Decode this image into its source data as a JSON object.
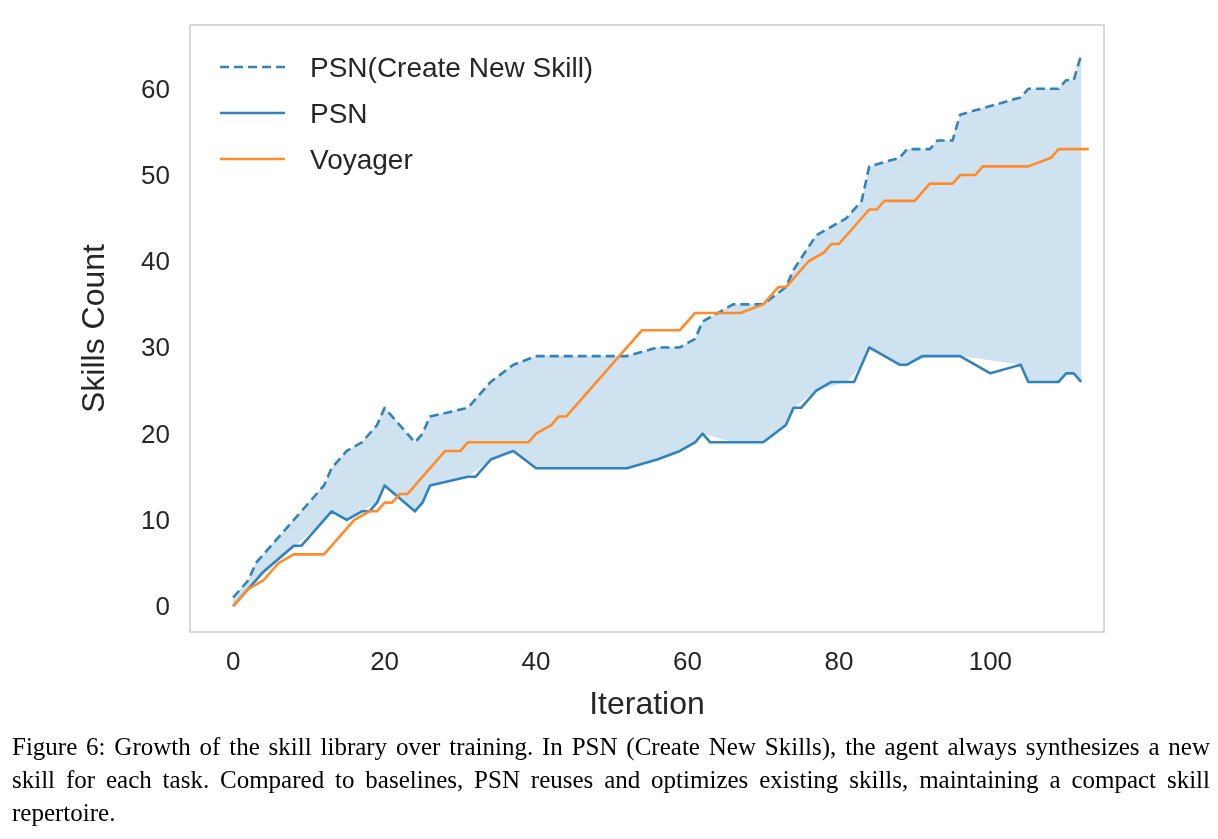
{
  "chart_data": {
    "type": "line",
    "xlabel": "Iteration",
    "ylabel": "Skills Count",
    "xlim": [
      -5.7,
      115
    ],
    "ylim": [
      -3,
      67.4
    ],
    "xticks": [
      0,
      20,
      40,
      60,
      80,
      100
    ],
    "yticks": [
      0,
      10,
      20,
      30,
      40,
      50,
      60
    ],
    "grid": false,
    "legend": "top left",
    "marker": "none",
    "series": [
      {
        "name": "PSN(Create New Skill)",
        "color": "#3182bd",
        "line_style": "dashed",
        "x": [
          0,
          2,
          3,
          7,
          12,
          13,
          15,
          17,
          19,
          20,
          24,
          25,
          26,
          31,
          34,
          37,
          40,
          52,
          56,
          59,
          61,
          62,
          66,
          70,
          73,
          74,
          77,
          81,
          83,
          84,
          88,
          89,
          92,
          93,
          95,
          96,
          104,
          105,
          109,
          110,
          111,
          112
        ],
        "values": [
          1,
          3,
          5,
          9,
          14,
          16,
          18,
          19,
          21,
          23,
          19,
          20,
          22,
          23,
          26,
          28,
          29,
          29,
          30,
          30,
          31,
          33,
          35,
          35,
          37,
          39,
          43,
          45,
          47,
          51,
          52,
          53,
          53,
          54,
          54,
          57,
          59,
          60,
          60,
          61,
          61,
          64
        ],
        "upper": [
          1,
          3,
          5,
          9,
          14,
          16,
          18,
          19,
          21,
          23,
          19,
          20,
          22,
          23,
          26,
          28,
          29,
          29,
          30,
          30,
          31,
          33,
          35,
          35,
          37,
          39,
          43,
          45,
          47,
          51,
          52,
          53,
          53,
          54,
          54,
          57,
          59,
          60,
          60,
          61,
          61,
          64
        ],
        "lower": [
          0,
          2,
          3,
          6,
          10,
          11,
          10,
          11,
          12,
          14,
          11,
          12,
          14,
          15,
          17,
          18,
          16,
          16,
          17,
          18,
          19,
          20,
          19,
          19,
          21,
          23,
          25,
          26,
          28,
          30,
          28,
          28,
          29,
          29,
          29,
          29,
          28,
          26,
          26,
          27,
          27,
          26
        ]
      },
      {
        "name": "PSN",
        "color": "#3182bd",
        "line_style": "solid",
        "x": [
          0,
          2,
          4,
          8,
          9,
          13,
          15,
          17,
          18,
          19,
          20,
          24,
          25,
          26,
          31,
          32,
          34,
          37,
          40,
          52,
          56,
          59,
          61,
          62,
          63,
          70,
          73,
          74,
          75,
          77,
          79,
          82,
          84,
          88,
          89,
          91,
          96,
          100,
          104,
          105,
          109,
          110,
          111,
          112
        ],
        "values": [
          0,
          2,
          4,
          7,
          7,
          11,
          10,
          11,
          11,
          12,
          14,
          11,
          12,
          14,
          15,
          15,
          17,
          18,
          16,
          16,
          17,
          18,
          19,
          20,
          19,
          19,
          21,
          23,
          23,
          25,
          26,
          26,
          30,
          28,
          28,
          29,
          29,
          27,
          28,
          26,
          26,
          27,
          27,
          26
        ]
      },
      {
        "name": "Voyager",
        "color": "#ff8c28",
        "line_style": "solid",
        "x": [
          0,
          2,
          4,
          6,
          8,
          12,
          16,
          18,
          19,
          20,
          21,
          22,
          23,
          28,
          30,
          31,
          39,
          40,
          42,
          43,
          44,
          54,
          59,
          61,
          67,
          70,
          72,
          73,
          76,
          78,
          79,
          80,
          84,
          85,
          86,
          90,
          92,
          95,
          96,
          98,
          99,
          105,
          108,
          109,
          113
        ],
        "values": [
          0,
          2,
          3,
          5,
          6,
          6,
          10,
          11,
          11,
          12,
          12,
          13,
          13,
          18,
          18,
          19,
          19,
          20,
          21,
          22,
          22,
          32,
          32,
          34,
          34,
          35,
          37,
          37,
          40,
          41,
          42,
          42,
          46,
          46,
          47,
          47,
          49,
          49,
          50,
          50,
          51,
          51,
          52,
          53,
          53
        ]
      }
    ],
    "annotations": [
      "Figure 6: Growth of the skill library over training. In PSN (Create New Skills), the agent always synthesizes a new skill for each task.  Compared to baselines, PSN reuses and optimizes existing skills, maintaining a compact skill repertoire."
    ]
  }
}
